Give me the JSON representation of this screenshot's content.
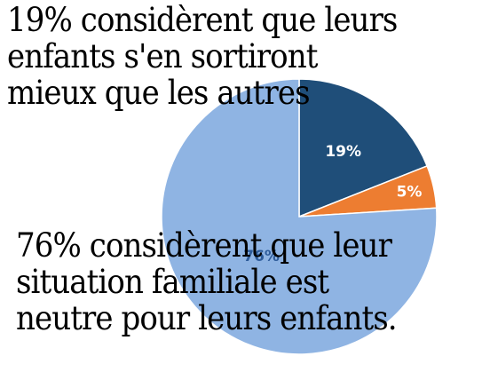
{
  "chart_data": {
    "type": "pie",
    "start": "12-o-clock",
    "direction": "clockwise",
    "slices": [
      {
        "value": 19,
        "label": "19%",
        "color": "#1f4e79",
        "label_color": "#ffffff"
      },
      {
        "value": 5,
        "label": "5%",
        "color": "#ed7d31",
        "label_color": "#ffffff"
      },
      {
        "value": 76,
        "label": "76%",
        "color": "#8fb4e3",
        "label_color": "#2e5c9a"
      }
    ]
  },
  "annotations": {
    "top": [
      "19% considèrent que leurs",
      "enfants s'en sortiront",
      "mieux que les autres"
    ],
    "bottom": [
      "76% considèrent que leur",
      "situation familiale est",
      "neutre pour leurs enfants."
    ]
  }
}
